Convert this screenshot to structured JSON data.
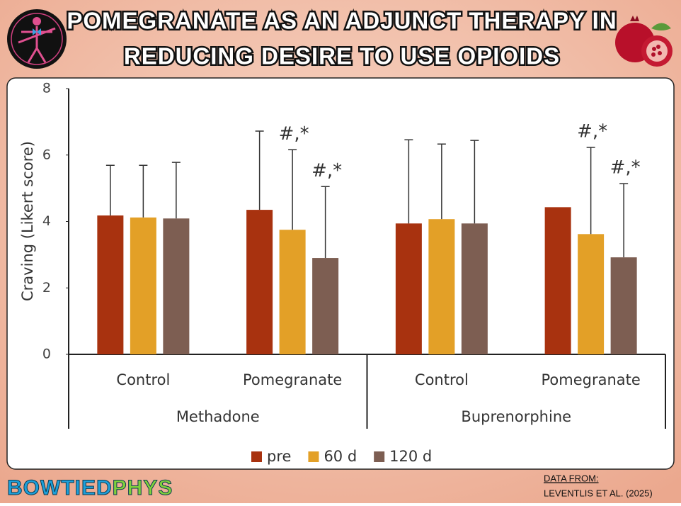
{
  "title_lines": [
    "POMEGRANATE AS AN ADJUNCT THERAPY IN",
    "REDUCING DESIRE TO USE OPIOIDS"
  ],
  "brand": "BOWTIEDPHYS",
  "source": {
    "label": "DATA FROM:",
    "citation": "LEVENTLIS ET AL.  (2025)"
  },
  "chart_data": {
    "type": "bar",
    "y_label": "Craving (Likert score)",
    "categories": [
      "Control",
      "Pomegranate",
      "Control",
      "Pomegranate"
    ],
    "category_groups": [
      "Methadone",
      "Methadone",
      "Buprenorphine",
      "Buprenorphine"
    ],
    "series": [
      {
        "name": "pre",
        "color": "#a8320f",
        "values": [
          4.18,
          4.35,
          3.94,
          4.43
        ],
        "errors": [
          1.51,
          2.37,
          2.52,
          null
        ],
        "annotations": [
          null,
          null,
          null,
          null
        ]
      },
      {
        "name": "60 d",
        "color": "#e3a027",
        "values": [
          4.12,
          3.75,
          4.07,
          3.62
        ],
        "errors": [
          1.57,
          2.41,
          2.26,
          2.61
        ],
        "annotations": [
          null,
          "#,*",
          null,
          "#,*"
        ]
      },
      {
        "name": "120 d",
        "color": "#7d5e52",
        "values": [
          4.09,
          2.9,
          3.94,
          2.92
        ],
        "errors": [
          1.69,
          2.15,
          2.5,
          2.22
        ],
        "annotations": [
          null,
          "#,*",
          null,
          "#,*"
        ]
      }
    ],
    "ylim": [
      0,
      8
    ],
    "yticks": [
      0,
      2,
      4,
      6,
      8
    ],
    "grid": false
  }
}
